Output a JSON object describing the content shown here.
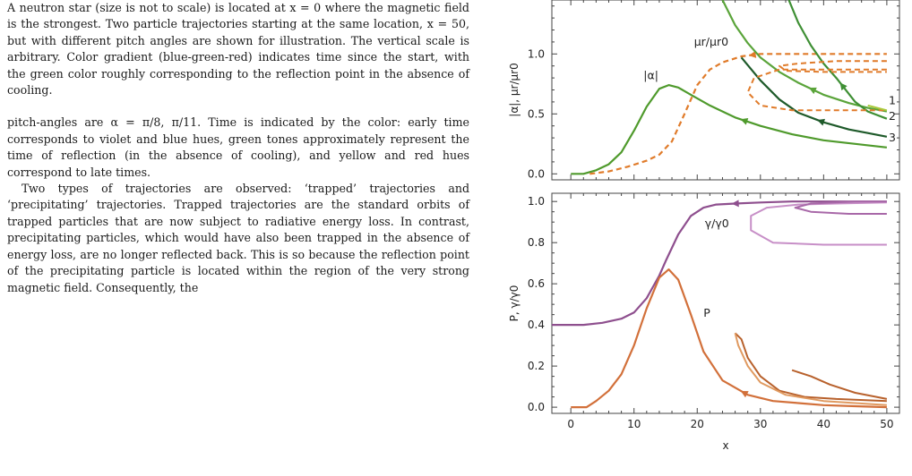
{
  "caption": "A neutron star (size is not to scale) is located at x = 0 where the magnetic field is the strongest. Two particle trajectories starting at the same location, x = 50, but with different pitch angles are shown for illustration. The vertical scale is arbitrary. Color gradient (blue-green-red) indicates time since the start, with the green color roughly corresponding to the reflection point in the absence of cooling.",
  "para1": "pitch-angles are α = π/8, π/11. Time is indicated by the color: early time corresponds to violet and blue hues, green tones approximately represent the time of reflection (in the absence of cooling), and yellow and red hues correspond to late times.",
  "para2": "Two types of trajectories are observed: ‘trapped’ trajectories and ‘precipitating’ trajectories. Trapped trajectories are the standard orbits of trapped particles that are now subject to radiative energy loss. In contrast, precipitating particles, which would have also been trapped in the absence of energy loss, are no longer reflected back. This is so because the reflection point of the precipitating particle is located within the region of the very strong magnetic field. Consequently, the",
  "chart_data": [
    {
      "type": "line",
      "ylabel": "|α|, μr/μr0",
      "xlim": [
        -3,
        52
      ],
      "ylim": [
        -0.05,
        1.45
      ],
      "yticks": [
        "0.0",
        "0.5",
        "1.0"
      ],
      "annotations": [
        "μr/μr0",
        "|α|",
        "1",
        "2",
        "3"
      ],
      "series": [
        {
          "name": "|α|",
          "color": "#4f9a2c",
          "x": [
            0,
            2,
            4,
            6,
            8,
            10,
            12,
            14,
            15.5,
            17,
            19,
            22,
            26,
            30,
            35,
            40,
            45,
            50
          ],
          "y": [
            0,
            0,
            0.03,
            0.08,
            0.18,
            0.36,
            0.56,
            0.71,
            0.74,
            0.72,
            0.66,
            0.57,
            0.47,
            0.4,
            0.33,
            0.28,
            0.25,
            0.22
          ]
        },
        {
          "name": "μr/μr0",
          "color": "#e07b2a",
          "x": [
            3,
            6,
            9,
            12,
            14,
            16,
            18,
            20,
            22,
            24,
            27,
            30,
            35,
            40,
            45,
            50
          ],
          "y": [
            0,
            0.02,
            0.06,
            0.11,
            0.16,
            0.27,
            0.5,
            0.74,
            0.87,
            0.93,
            0.98,
            1.0,
            1.0,
            1.0,
            1.0,
            1.0
          ]
        },
        {
          "name": "1",
          "color": "#5aa43a",
          "x": [
            24,
            26,
            28,
            30,
            33,
            36,
            40,
            44,
            47,
            50
          ],
          "y": [
            1.45,
            1.24,
            1.09,
            0.97,
            0.85,
            0.76,
            0.66,
            0.59,
            0.55,
            0.52
          ]
        },
        {
          "name": "2",
          "color": "#3e8f34",
          "x": [
            34.5,
            36,
            38,
            40,
            42,
            45,
            47,
            50
          ],
          "y": [
            1.45,
            1.26,
            1.07,
            0.92,
            0.8,
            0.6,
            0.52,
            0.46
          ]
        },
        {
          "name": "3",
          "color": "#1e5a2a",
          "x": [
            27,
            30,
            33,
            36,
            40,
            44,
            47,
            50
          ],
          "y": [
            0.97,
            0.78,
            0.62,
            0.51,
            0.43,
            0.37,
            0.34,
            0.31
          ]
        }
      ]
    },
    {
      "type": "line",
      "xlabel": "x",
      "ylabel": "P, γ/γ0",
      "xlim": [
        -3,
        52
      ],
      "ylim": [
        -0.03,
        1.04
      ],
      "xticks": [
        "0",
        "10",
        "20",
        "30",
        "40",
        "50"
      ],
      "yticks": [
        "0.0",
        "0.2",
        "0.4",
        "0.6",
        "0.8",
        "1.0"
      ],
      "annotations": [
        "γ/γ0",
        "P"
      ],
      "series": [
        {
          "name": "γ/γ0",
          "color": "#8e4f8e",
          "x": [
            -3,
            2,
            5,
            8,
            10,
            12,
            14,
            15,
            17,
            19,
            21,
            23,
            26,
            30,
            35,
            40,
            45,
            50
          ],
          "y": [
            0.4,
            0.4,
            0.41,
            0.43,
            0.46,
            0.53,
            0.64,
            0.71,
            0.84,
            0.93,
            0.97,
            0.985,
            0.99,
            0.995,
            1.0,
            1.0,
            1.0,
            1.0
          ]
        },
        {
          "name": "P",
          "color": "#d2703a",
          "x": [
            0,
            2.5,
            4,
            6,
            8,
            10,
            12,
            14,
            15.5,
            17,
            19,
            21,
            24,
            28,
            32,
            36,
            40,
            45,
            50
          ],
          "y": [
            0,
            0,
            0.03,
            0.08,
            0.16,
            0.3,
            0.48,
            0.63,
            0.67,
            0.62,
            0.45,
            0.27,
            0.13,
            0.06,
            0.03,
            0.02,
            0.01,
            0.005,
            0
          ]
        }
      ]
    }
  ]
}
